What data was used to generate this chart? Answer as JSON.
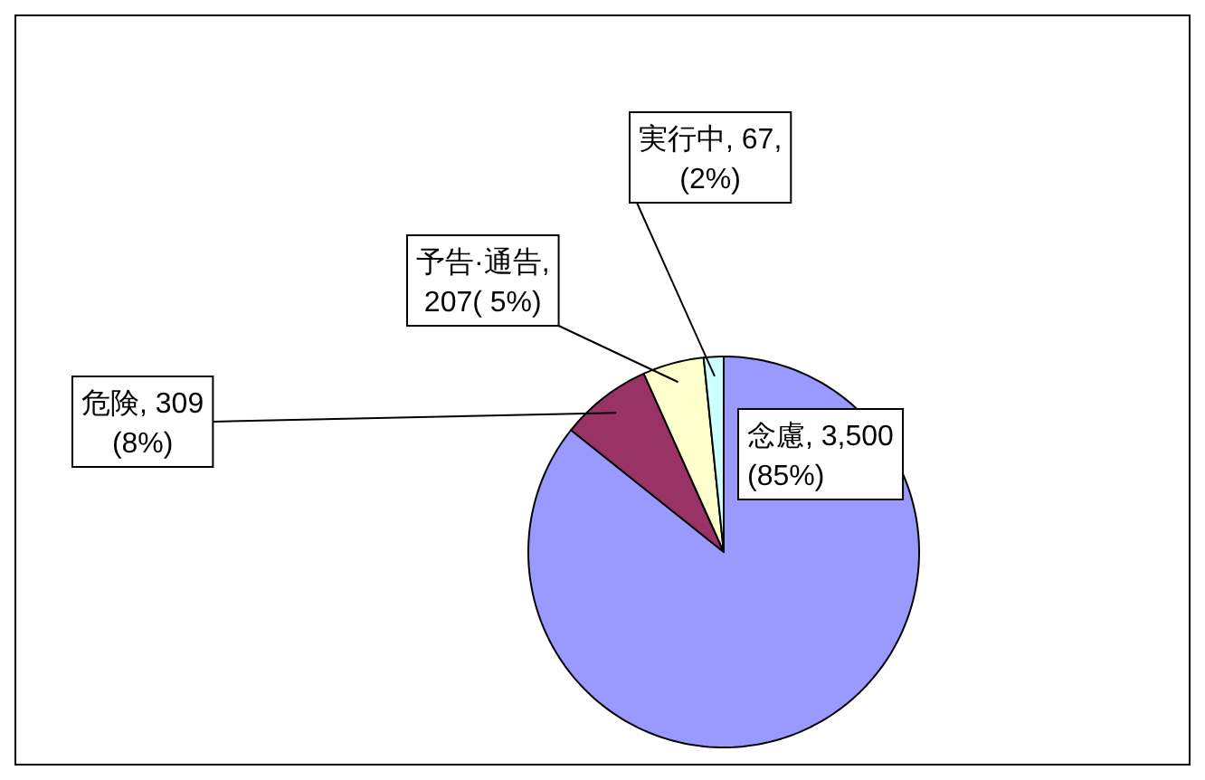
{
  "chart_data": {
    "type": "pie",
    "categories": [
      "念慮",
      "危険",
      "予告·通告",
      "実行中"
    ],
    "values": [
      3500,
      309,
      207,
      67
    ],
    "value_labels": [
      ", 3,500 (85%)",
      ", 309 (8%)",
      ", 207( 5%)",
      ", 67, (2%)"
    ],
    "colors": [
      "#9999ff",
      "#993366",
      "#ffffcc",
      "#ccffff"
    ],
    "legend": false
  }
}
